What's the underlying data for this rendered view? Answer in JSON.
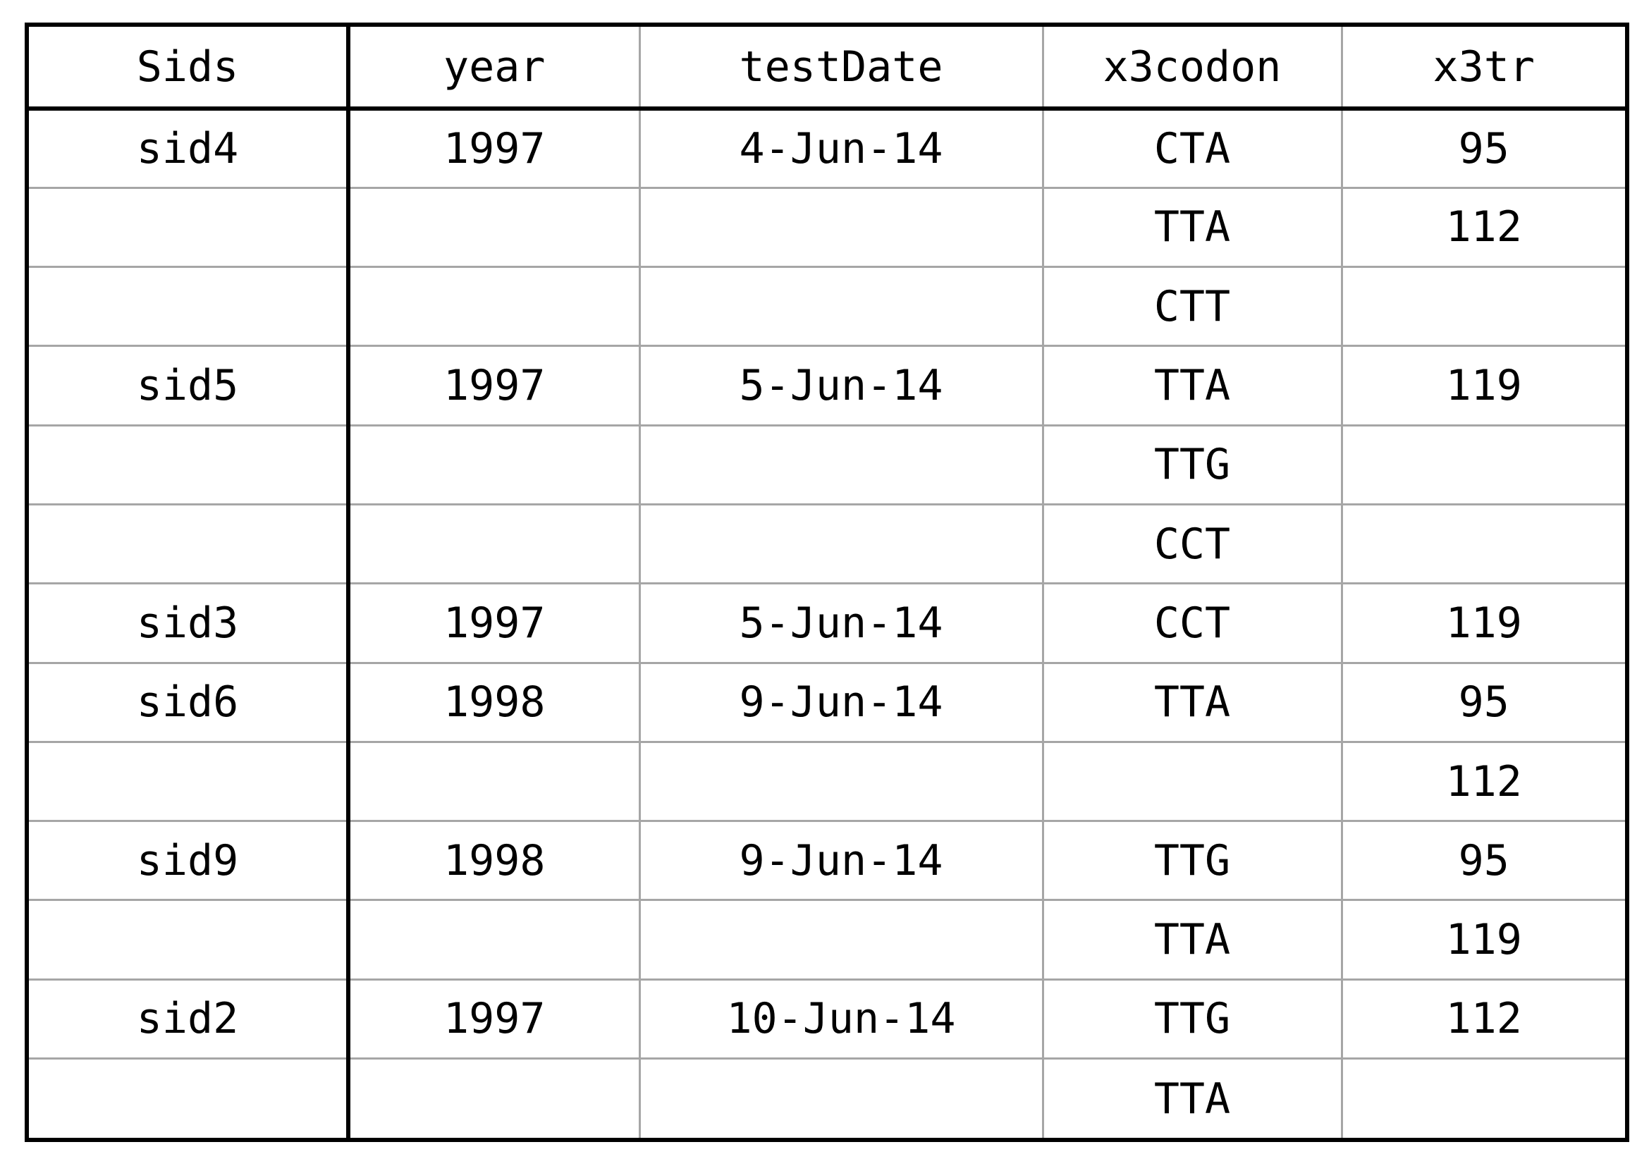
{
  "table": {
    "columns": [
      "Sids",
      "year",
      "testDate",
      "x3codon",
      "x3tr"
    ],
    "rows": [
      [
        "sid4",
        "1997",
        "4-Jun-14",
        "CTA",
        "95"
      ],
      [
        "",
        "",
        "",
        "TTA",
        "112"
      ],
      [
        "",
        "",
        "",
        "CTT",
        ""
      ],
      [
        "sid5",
        "1997",
        "5-Jun-14",
        "TTA",
        "119"
      ],
      [
        "",
        "",
        "",
        "TTG",
        ""
      ],
      [
        "",
        "",
        "",
        "CCT",
        ""
      ],
      [
        "sid3",
        "1997",
        "5-Jun-14",
        "CCT",
        "119"
      ],
      [
        "sid6",
        "1998",
        "9-Jun-14",
        "TTA",
        "95"
      ],
      [
        "",
        "",
        "",
        "",
        "112"
      ],
      [
        "sid9",
        "1998",
        "9-Jun-14",
        "TTG",
        "95"
      ],
      [
        "",
        "",
        "",
        "TTA",
        "119"
      ],
      [
        "sid2",
        "1997",
        "10-Jun-14",
        "TTG",
        "112"
      ],
      [
        "",
        "",
        "",
        "TTA",
        ""
      ]
    ]
  }
}
